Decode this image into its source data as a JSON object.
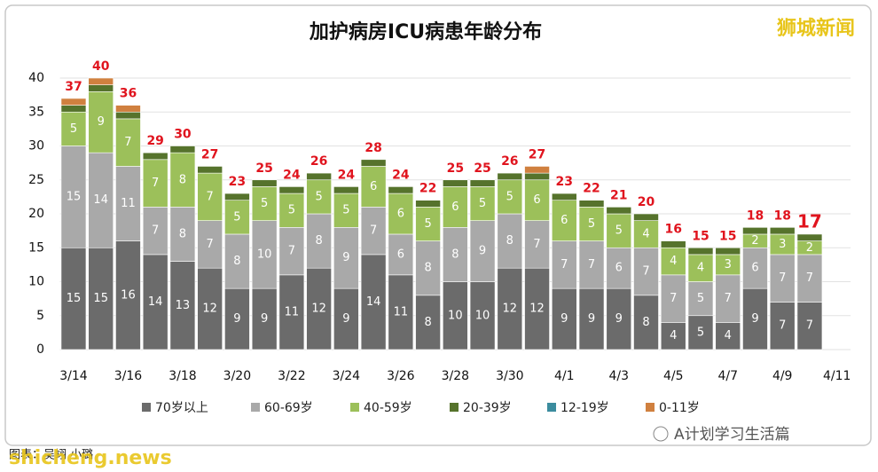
{
  "chart_data": {
    "type": "stacked-bar",
    "title": "加护病房ICU病患年龄分布",
    "categories": [
      "3/14",
      null,
      "3/16",
      null,
      "3/18",
      null,
      "3/20",
      null,
      "3/22",
      null,
      "3/24",
      null,
      "3/26",
      null,
      "3/28",
      null,
      "3/30",
      null,
      "4/1",
      null,
      "4/3",
      null,
      "4/5",
      null,
      "4/7",
      null,
      "4/9",
      null,
      "4/11"
    ],
    "series": [
      {
        "name": "70岁以上",
        "color": "#6b6b6b",
        "values": [
          15,
          15,
          16,
          14,
          13,
          12,
          9,
          9,
          11,
          12,
          9,
          14,
          11,
          8,
          10,
          10,
          12,
          12,
          9,
          9,
          9,
          8,
          4,
          5,
          4,
          9,
          7,
          7,
          null
        ]
      },
      {
        "name": "60-69岁",
        "color": "#a9a9a9",
        "values": [
          15,
          14,
          11,
          7,
          8,
          7,
          8,
          10,
          7,
          8,
          9,
          7,
          6,
          8,
          8,
          9,
          8,
          7,
          7,
          7,
          6,
          7,
          7,
          5,
          7,
          6,
          7,
          7,
          null
        ]
      },
      {
        "name": "40-59岁",
        "color": "#9cc05a",
        "values": [
          5,
          9,
          7,
          7,
          8,
          7,
          5,
          5,
          5,
          5,
          5,
          6,
          6,
          5,
          6,
          5,
          5,
          6,
          6,
          5,
          5,
          4,
          4,
          4,
          3,
          2,
          3,
          2,
          null
        ]
      },
      {
        "name": "20-39岁",
        "color": "#56732c",
        "values": [
          1,
          1,
          1,
          1,
          1,
          1,
          1,
          1,
          1,
          1,
          1,
          1,
          1,
          1,
          1,
          1,
          1,
          1,
          1,
          1,
          1,
          1,
          1,
          1,
          1,
          1,
          1,
          1,
          null
        ]
      },
      {
        "name": "12-19岁",
        "color": "#3b8c9e",
        "values": [
          0,
          0,
          0,
          0,
          0,
          0,
          0,
          0,
          0,
          0,
          0,
          0,
          0,
          0,
          0,
          0,
          0,
          0,
          0,
          0,
          0,
          0,
          0,
          0,
          0,
          0,
          0,
          0,
          null
        ]
      },
      {
        "name": "0-11岁",
        "color": "#d0803f",
        "values": [
          1,
          1,
          1,
          0,
          0,
          0,
          0,
          0,
          0,
          0,
          0,
          0,
          0,
          0,
          0,
          0,
          0,
          1,
          0,
          0,
          0,
          0,
          0,
          0,
          0,
          0,
          0,
          0,
          null
        ]
      }
    ],
    "totals": [
      37,
      40,
      36,
      29,
      30,
      27,
      23,
      25,
      24,
      26,
      24,
      28,
      24,
      22,
      25,
      25,
      26,
      27,
      23,
      22,
      21,
      20,
      16,
      15,
      15,
      18,
      18,
      17,
      null
    ],
    "ylim": [
      0,
      40
    ],
    "yticks": [
      0,
      5,
      10,
      15,
      20,
      25,
      30,
      35,
      40
    ],
    "grid": true
  },
  "overlay": {
    "brand": "狮城新闻",
    "site": "shicheng.news",
    "credit": "图表：吴翊 小璐",
    "account": "A计划学习生活篇"
  }
}
